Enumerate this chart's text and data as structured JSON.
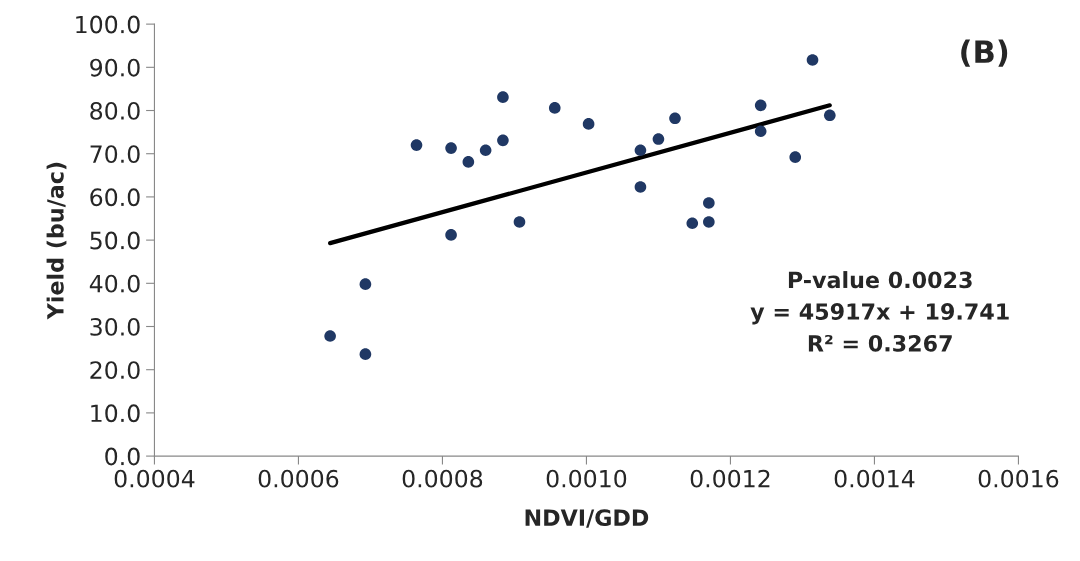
{
  "chart_data": {
    "type": "scatter",
    "xlabel": "NDVI/GDD",
    "ylabel": "Yield (bu/ac)",
    "xlim": [
      0.0004,
      0.0016
    ],
    "xticks": [
      {
        "value": 0.0004,
        "label": "0.0004"
      },
      {
        "value": 0.0006,
        "label": "0.0006"
      },
      {
        "value": 0.0008,
        "label": "0.0008"
      },
      {
        "value": 0.001,
        "label": "0.0010"
      },
      {
        "value": 0.0012,
        "label": "0.0012"
      },
      {
        "value": 0.0014,
        "label": "0.0014"
      },
      {
        "value": 0.0016,
        "label": "0.0016"
      }
    ],
    "ylim": [
      0,
      100
    ],
    "yticks": [
      {
        "value": 0,
        "label": "0.0"
      },
      {
        "value": 10,
        "label": "10.0"
      },
      {
        "value": 20,
        "label": "20.0"
      },
      {
        "value": 30,
        "label": "30.0"
      },
      {
        "value": 40,
        "label": "40.0"
      },
      {
        "value": 50,
        "label": "50.0"
      },
      {
        "value": 60,
        "label": "60.0"
      },
      {
        "value": 70,
        "label": "70.0"
      },
      {
        "value": 80,
        "label": "80.0"
      },
      {
        "value": 90,
        "label": "90.0"
      },
      {
        "value": 100,
        "label": "100.0"
      }
    ],
    "grid": false,
    "legend": false,
    "marker": "circle",
    "series": [
      {
        "color": "#203864",
        "x": [
          0.000644,
          0.000693,
          0.000693,
          0.000764,
          0.000812,
          0.000812,
          0.000836,
          0.00086,
          0.000884,
          0.000884,
          0.000907,
          0.000956,
          0.001003,
          0.001075,
          0.001075,
          0.0011,
          0.001123,
          0.001147,
          0.00117,
          0.00117,
          0.001242,
          0.001242,
          0.00129,
          0.001314,
          0.001338
        ],
        "values": [
          27.8,
          23.6,
          39.8,
          72.0,
          71.3,
          51.2,
          68.1,
          70.8,
          73.1,
          83.1,
          54.2,
          80.6,
          76.9,
          70.8,
          62.3,
          73.4,
          78.2,
          53.9,
          54.2,
          58.6,
          81.2,
          75.2,
          69.2,
          91.7,
          78.9
        ]
      },
      {
        "type": "line",
        "color": "#000000",
        "marker": "none",
        "line_style": "solid",
        "x": [
          0.000644,
          0.001338
        ],
        "values": [
          49.3,
          81.2
        ]
      }
    ],
    "annotations": [
      "(B)",
      "P-value 0.0023\ny = 45917x + 19.741\nR² = 0.3267"
    ]
  }
}
